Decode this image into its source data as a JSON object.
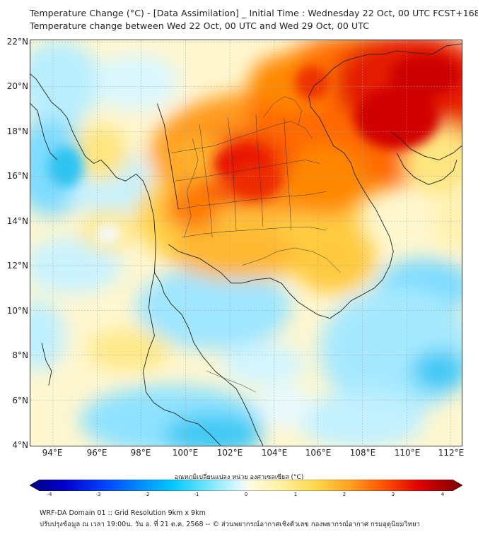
{
  "title": {
    "line1": "Temperature Change (°C) - [Data Assimilation] _ Initial Time : Wednesday 22 Oct, 00 UTC FCST+168",
    "line2": "Temperature change between Wed 22 Oct, 00 UTC and Wed 29 Oct, 00 UTC"
  },
  "axes": {
    "lat_labels": [
      "22°N",
      "20°N",
      "18°N",
      "16°N",
      "14°N",
      "12°N",
      "10°N",
      "8°N",
      "6°N",
      "4°N"
    ],
    "lon_labels": [
      "94°E",
      "96°E",
      "98°E",
      "100°E",
      "102°E",
      "104°E",
      "106°E",
      "108°E",
      "110°E",
      "112°E"
    ],
    "lat_range": [
      4,
      22.3
    ],
    "lon_range": [
      93,
      112.5
    ]
  },
  "colorbar": {
    "title": "อุณหภูมิเปลี่ยนแปลง หน่วย องศาเซลเซียส (°C)",
    "ticks": [
      "-4",
      "-3",
      "-2",
      "-1",
      "0",
      "1",
      "2",
      "3",
      "4"
    ],
    "range": [
      -4,
      4
    ]
  },
  "footer": {
    "line1": "WRF-DA Domain 01 :: Grid Resolution 9km x 9km",
    "line2": "ปรับปรุงข้อมูล ณ เวลา 19:00น. วัน อ. ที่ 21 ต.ค. 2568 -- © ส่วนพยากรณ์อากาศเชิงตัวเลข กองพยากรณ์อากาศ กรมอุตุนิยมวิทยา"
  },
  "colors": {
    "warm_max": "#c40000",
    "warm": "#ff7a00",
    "mild": "#ffe680",
    "neutral": "#fffbe8",
    "cool": "#7fe0ff",
    "cold": "#00b8f0",
    "coastline": "#222222"
  }
}
